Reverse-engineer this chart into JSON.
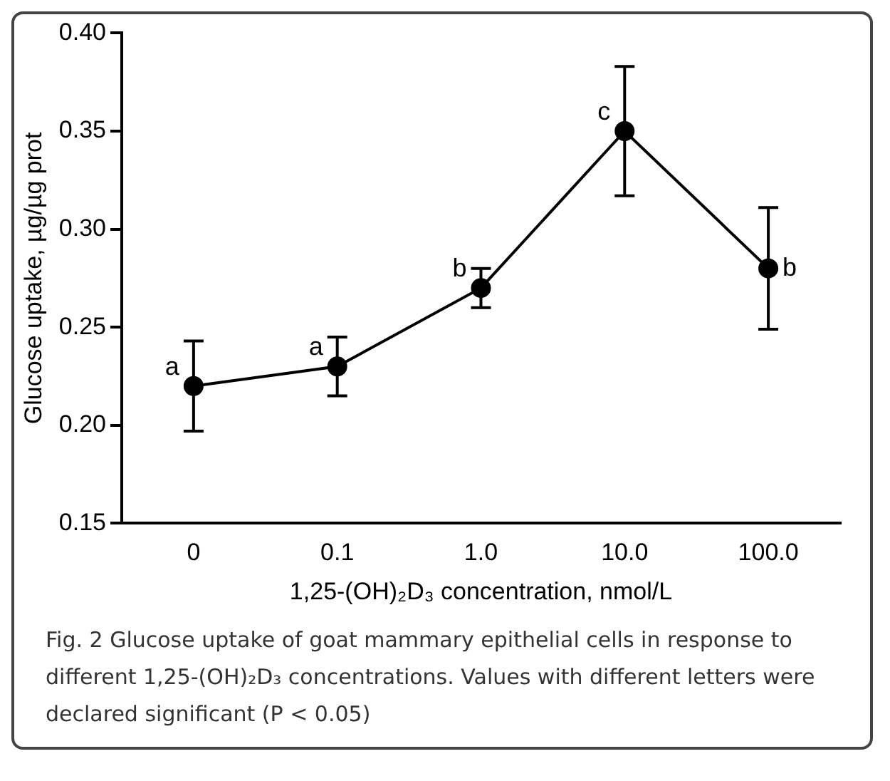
{
  "chart_data": {
    "type": "line",
    "xlabel": "1,25-(OH)₂D₃ concentration, nmol/L",
    "ylabel": "Glucose uptake, µg/µg prot",
    "categories": [
      "0",
      "0.1",
      "1.0",
      "10.0",
      "100.0"
    ],
    "values": [
      0.22,
      0.23,
      0.27,
      0.35,
      0.28
    ],
    "errors": [
      0.023,
      0.015,
      0.01,
      0.033,
      0.031
    ],
    "color": "#000000",
    "marker": "circle",
    "ylim": [
      0.15,
      0.4
    ],
    "yticks": [
      {
        "value": 0.15,
        "label": "0.15"
      },
      {
        "value": 0.2,
        "label": "0.20"
      },
      {
        "value": 0.25,
        "label": "0.25"
      },
      {
        "value": 0.3,
        "label": "0.30"
      },
      {
        "value": 0.35,
        "label": "0.35"
      },
      {
        "value": 0.4,
        "label": "0.40"
      }
    ],
    "grid": false,
    "legend": false,
    "annotations": [
      {
        "text": "a",
        "x": "0",
        "y": 0.22
      },
      {
        "text": "a",
        "x": "0.1",
        "y": 0.23
      },
      {
        "text": "b",
        "x": "1.0",
        "y": 0.27
      },
      {
        "text": "c",
        "x": "10.0",
        "y": 0.35
      },
      {
        "text": "b",
        "x": "100.0",
        "y": 0.28
      },
      "Fig. 2 Glucose uptake of goat mammary epithelial cells in response to different 1,25-(OH)₂D₃ concentrations. Values with different letters were declared significant (P < 0.05)"
    ]
  }
}
